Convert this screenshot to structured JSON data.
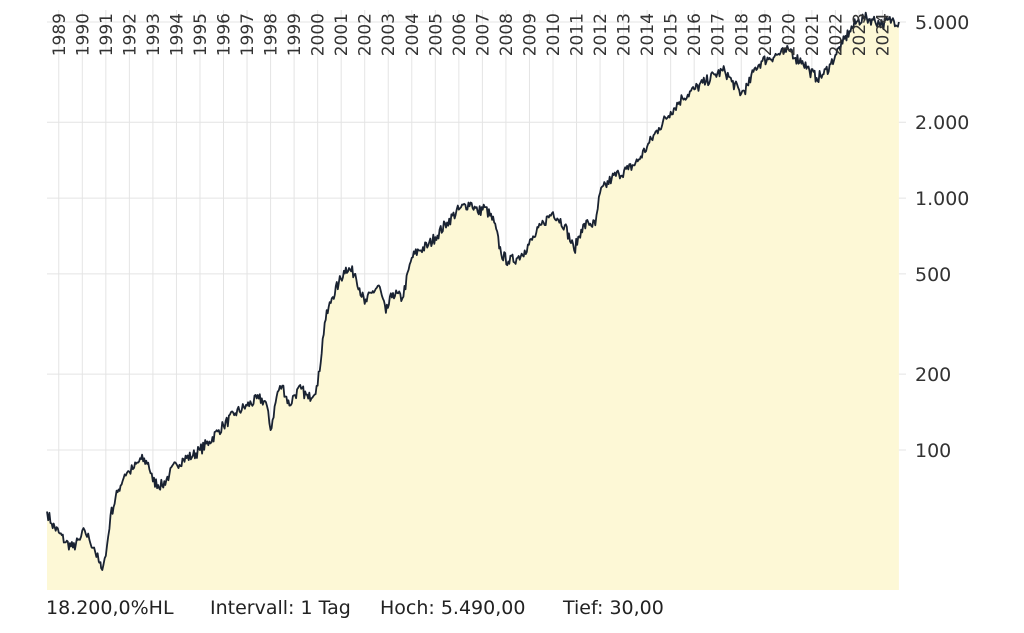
{
  "chart_data": {
    "type": "area",
    "title": "",
    "xlabel": "",
    "ylabel": "",
    "y_scale": "log",
    "ylim": [
      30,
      5490
    ],
    "y_ticks": [
      {
        "value": 100,
        "label": "100"
      },
      {
        "value": 200,
        "label": "200"
      },
      {
        "value": 500,
        "label": "500"
      },
      {
        "value": 1000,
        "label": "1.000"
      },
      {
        "value": 2000,
        "label": "2.000"
      },
      {
        "value": 5000,
        "label": "5.000"
      }
    ],
    "x_ticks": [
      "1989",
      "1990",
      "1991",
      "1992",
      "1993",
      "1994",
      "1995",
      "1996",
      "1997",
      "1998",
      "1999",
      "2000",
      "2001",
      "2002",
      "2003",
      "2004",
      "2005",
      "2006",
      "2007",
      "2008",
      "2009",
      "2010",
      "2011",
      "2012",
      "2013",
      "2014",
      "2015",
      "2016",
      "2017",
      "2018",
      "2019",
      "2020",
      "2021",
      "2022",
      "2023",
      "2024"
    ],
    "grid": true,
    "legend": "none",
    "colors": {
      "line": "#1a2332",
      "fill": "#fdf8d6",
      "grid": "#e4e4e4"
    },
    "series": [
      {
        "x": [
          1988.5,
          1988.7,
          1989.0,
          1989.3,
          1989.6,
          1989.9,
          1990.1,
          1990.3,
          1990.5,
          1990.7,
          1990.8,
          1991.0,
          1991.2,
          1991.5,
          1991.8,
          1992.0,
          1992.2,
          1992.5,
          1992.8,
          1993.0,
          1993.4,
          1993.7,
          1994.0,
          1994.3,
          1994.7,
          1995.0,
          1995.4,
          1995.8,
          1996.0,
          1996.5,
          1997.0,
          1997.5,
          1997.8,
          1998.0,
          1998.3,
          1998.5,
          1998.8,
          1999.0,
          1999.3,
          1999.6,
          2000.0,
          2000.3,
          2000.6,
          2000.9,
          2001.2,
          2001.6,
          2002.0,
          2002.3,
          2002.6,
          2002.9,
          2003.2,
          2003.6,
          2004.0,
          2004.3,
          2004.7,
          2005.0,
          2005.5,
          2006.0,
          2006.5,
          2006.8,
          2007.1,
          2007.5,
          2007.8,
          2008.1,
          2008.5,
          2008.8,
          2009.2,
          2009.6,
          2010.0,
          2010.5,
          2010.9,
          2011.2,
          2011.5,
          2011.8,
          2012.0,
          2012.5,
          2012.8,
          2013.2,
          2013.6,
          2014.0,
          2014.5,
          2015.0,
          2015.5,
          2016.0,
          2016.5,
          2016.9,
          2017.3,
          2017.6,
          2018.0,
          2018.3,
          2018.6,
          2018.9,
          2019.2,
          2019.5,
          2019.9,
          2020.1,
          2020.3,
          2020.6,
          2020.9,
          2021.2,
          2021.5,
          2021.8,
          2022.0,
          2022.3,
          2022.6,
          2022.9,
          2023.2,
          2023.6,
          2024.0,
          2024.4,
          2024.7
        ],
        "y": [
          57,
          51,
          47,
          43,
          41,
          44,
          48,
          44,
          41,
          36,
          34,
          38,
          55,
          68,
          80,
          82,
          85,
          92,
          89,
          75,
          72,
          80,
          88,
          92,
          95,
          100,
          108,
          120,
          125,
          140,
          150,
          160,
          155,
          120,
          170,
          180,
          150,
          165,
          175,
          160,
          180,
          320,
          400,
          460,
          530,
          500,
          380,
          420,
          450,
          350,
          420,
          400,
          580,
          620,
          650,
          700,
          800,
          900,
          960,
          880,
          920,
          800,
          600,
          560,
          580,
          620,
          700,
          800,
          880,
          780,
          620,
          750,
          800,
          780,
          1050,
          1200,
          1250,
          1300,
          1400,
          1600,
          1900,
          2200,
          2500,
          2700,
          2900,
          3100,
          3200,
          2900,
          2600,
          2800,
          3300,
          3500,
          3600,
          3700,
          3800,
          3900,
          3600,
          3500,
          3200,
          3000,
          3100,
          3400,
          3700,
          4100,
          4600,
          5000,
          5200,
          5100,
          4900,
          5100,
          5000
        ]
      }
    ]
  },
  "footer": {
    "change": "18.200,0%HL",
    "interval": "Intervall: 1 Tag",
    "high": "Hoch:  5.490,00",
    "low": "Tief:  30,00"
  }
}
